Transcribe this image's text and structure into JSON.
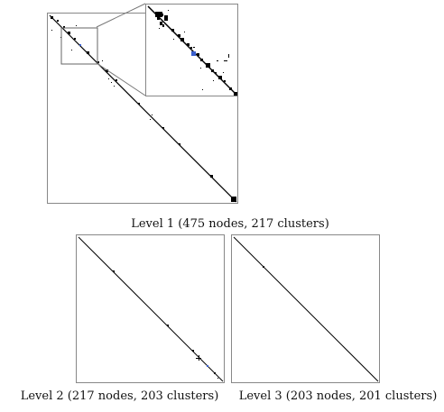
{
  "captions": {
    "level1": "Level 1 (475 nodes, 217 clusters)",
    "level2": "Level 2 (217 nodes, 203 clusters)",
    "level3": "Level 3 (203 nodes, 201 clusters)"
  },
  "colors": {
    "diagonal": "#000000",
    "highlight": "#3a5fcd",
    "frame": "#888888"
  }
}
